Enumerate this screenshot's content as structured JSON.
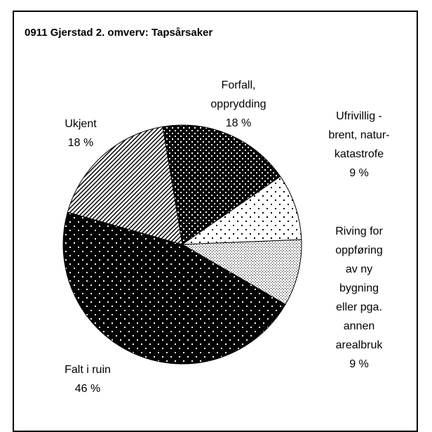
{
  "chart_data": {
    "type": "pie",
    "title": "0911 Gjerstad 2. omverv: Tapsårsaker",
    "categories": [
      "Forfall, opprydding",
      "Ufrivillig - brent, natur-katastrofe",
      "Riving for oppføring av ny bygning eller pga. annen arealbruk",
      "Falt i ruin",
      "Ukjent"
    ],
    "values": [
      18,
      9,
      9,
      46,
      18
    ],
    "value_labels": [
      "18 %",
      "9 %",
      "9 %",
      "46 %",
      "18 %"
    ]
  }
}
